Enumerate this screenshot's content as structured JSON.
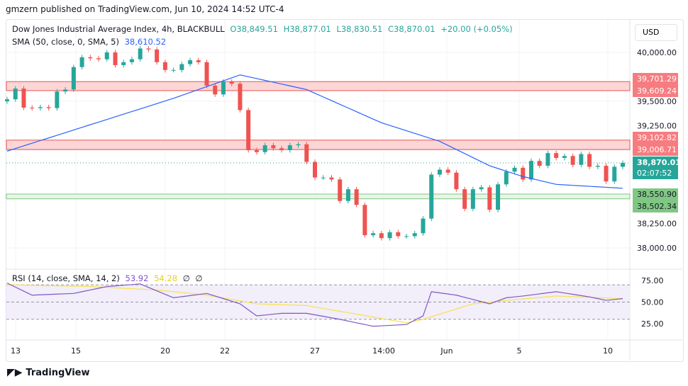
{
  "header": {
    "published": "gmzern published on TradingView.com, Jun 10, 2024 14:52 UTC-4"
  },
  "legend": {
    "symbol": "Dow Jones Industrial Average Index, 4h, BLACKBULL",
    "open": "O38,849.51",
    "high": "H38,877.01",
    "low": "L38,830.51",
    "close": "C38,870.01",
    "change": "+20.00 (+0.05%)",
    "sma_label": "SMA (50, close, 0, SMA, 5)",
    "sma_value": "38,610.52"
  },
  "rsi_legend": {
    "label": "RSI (14, close, SMA, 14, 2)",
    "rsi": "53.92",
    "rsi_ma": "54.28",
    "x1": "∅",
    "x2": "∅"
  },
  "currency": "USD",
  "price_axis": [
    "40,000.00",
    "39,500.00",
    "39,250.00",
    "38,250.00",
    "38,000.00"
  ],
  "rsi_axis": [
    "75.00",
    "50.00",
    "25.00"
  ],
  "tags": {
    "r1": "39,701.29",
    "r2": "39,609.24",
    "r3": "39,102.82",
    "r4": "39,006.71",
    "last": "38,870.01",
    "countdown": "02:07:52",
    "s1": "38,550.90",
    "s2": "38,502.34"
  },
  "time_axis": [
    "13",
    "15",
    "20",
    "22",
    "27",
    "14:00",
    "Jun",
    "5",
    "10"
  ],
  "footer": {
    "brand": "TradingView"
  },
  "colors": {
    "up": "#26a69a",
    "down": "#ef5350",
    "sma": "#2962ff",
    "rsi": "#7e57c2",
    "rsi_ma": "#f7e24b",
    "resistance": "#f7a1a1",
    "support": "#81c784"
  },
  "chart_data": {
    "type": "candlestick",
    "closes": [
      39520,
      39630,
      39435,
      39430,
      39440,
      39430,
      39600,
      39620,
      39850,
      39950,
      39940,
      39930,
      40000,
      39870,
      39900,
      39930,
      40040,
      40030,
      39900,
      39820,
      39820,
      39880,
      39920,
      39900,
      39660,
      39570,
      39700,
      39680,
      39410,
      39000,
      38980,
      39050,
      39020,
      39000,
      39050,
      39060,
      38880,
      38720,
      38720,
      38700,
      38480,
      38600,
      38440,
      38130,
      38150,
      38100,
      38160,
      38120,
      38120,
      38150,
      38300,
      38750,
      38800,
      38770,
      38600,
      38400,
      38600,
      38620,
      38390,
      38650,
      38780,
      38820,
      38700,
      38890,
      38840,
      38970,
      38920,
      38940,
      38850,
      38960,
      38830,
      38840,
      38680,
      38830,
      38870
    ],
    "sma_keypoints": [
      [
        0,
        38990
      ],
      [
        20,
        39530
      ],
      [
        28,
        39770
      ],
      [
        36,
        39620
      ],
      [
        45,
        39280
      ],
      [
        52,
        39090
      ],
      [
        58,
        38840
      ],
      [
        62,
        38730
      ],
      [
        66,
        38650
      ],
      [
        74,
        38610
      ]
    ],
    "rsi_keypoints": [
      [
        0,
        72
      ],
      [
        3,
        58
      ],
      [
        8,
        60
      ],
      [
        12,
        68
      ],
      [
        16,
        71
      ],
      [
        20,
        55
      ],
      [
        24,
        60
      ],
      [
        28,
        48
      ],
      [
        30,
        34
      ],
      [
        33,
        37
      ],
      [
        36,
        37
      ],
      [
        40,
        30
      ],
      [
        44,
        22
      ],
      [
        48,
        24
      ],
      [
        50,
        34
      ],
      [
        51,
        62
      ],
      [
        54,
        58
      ],
      [
        58,
        48
      ],
      [
        60,
        55
      ],
      [
        62,
        57
      ],
      [
        66,
        62
      ],
      [
        70,
        56
      ],
      [
        72,
        52
      ],
      [
        74,
        54
      ]
    ],
    "rsi_ma_keypoints": [
      [
        0,
        70
      ],
      [
        10,
        68
      ],
      [
        18,
        64
      ],
      [
        24,
        58
      ],
      [
        30,
        48
      ],
      [
        36,
        46
      ],
      [
        42,
        36
      ],
      [
        48,
        26
      ],
      [
        50,
        30
      ],
      [
        56,
        48
      ],
      [
        60,
        52
      ],
      [
        66,
        57
      ],
      [
        74,
        54
      ]
    ],
    "resistance_zones": [
      [
        39609.24,
        39701.29
      ],
      [
        39006.71,
        39102.82
      ]
    ],
    "support_zone": [
      38502.34,
      38550.9
    ],
    "ylim": [
      37900,
      40150
    ],
    "rsi_levels": [
      70,
      50,
      30
    ]
  }
}
